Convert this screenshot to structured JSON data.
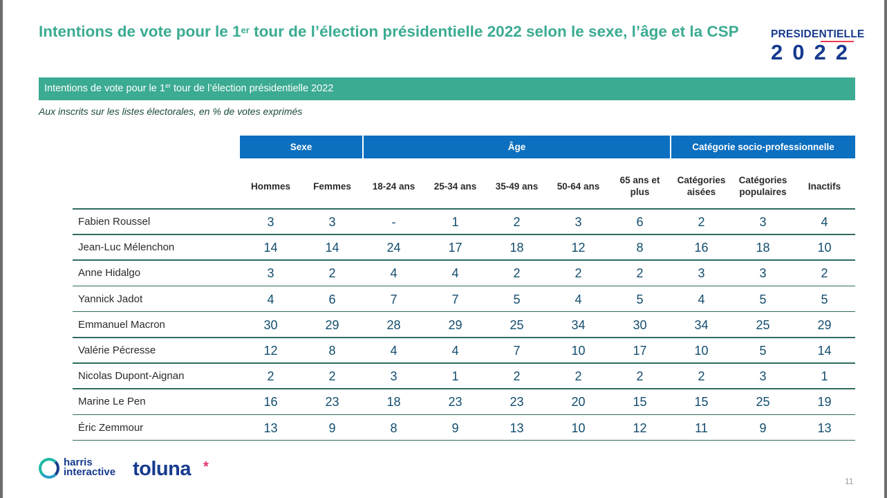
{
  "title": {
    "pre": "Intentions de vote pour le 1",
    "sup": "er",
    "post": " tour de l’élection présidentielle 2022 selon le sexe, l’âge et la CSP"
  },
  "logo": {
    "word": "PRESIDENTIELLE",
    "digits": "2022"
  },
  "banner": {
    "pre": "Intentions de vote pour le 1",
    "sup": "er",
    "post": " tour de l’élection présidentielle 2022"
  },
  "subtitle": "Aux inscrits sur les listes électorales, en % de votes exprimés",
  "groups": [
    {
      "label": "Sexe"
    },
    {
      "label": "Âge"
    },
    {
      "label": "Catégorie socio-professionnelle"
    }
  ],
  "columns": [
    "Hommes",
    "Femmes",
    "18-24 ans",
    "25-34 ans",
    "35-49 ans",
    "50-64 ans",
    "65 ans et plus",
    "Catégories aisées",
    "Catégories populaires",
    "Inactifs"
  ],
  "rows": [
    {
      "name": "Fabien Roussel",
      "values": [
        "3",
        "3",
        "-",
        "1",
        "2",
        "3",
        "6",
        "2",
        "3",
        "4"
      ]
    },
    {
      "name": "Jean-Luc Mélenchon",
      "values": [
        "14",
        "14",
        "24",
        "17",
        "18",
        "12",
        "8",
        "16",
        "18",
        "10"
      ]
    },
    {
      "name": "Anne Hidalgo",
      "values": [
        "3",
        "2",
        "4",
        "4",
        "2",
        "2",
        "2",
        "3",
        "3",
        "2"
      ]
    },
    {
      "name": "Yannick Jadot",
      "values": [
        "4",
        "6",
        "7",
        "7",
        "5",
        "4",
        "5",
        "4",
        "5",
        "5"
      ]
    },
    {
      "name": "Emmanuel Macron",
      "values": [
        "30",
        "29",
        "28",
        "29",
        "25",
        "34",
        "30",
        "34",
        "25",
        "29"
      ]
    },
    {
      "name": "Valérie Pécresse",
      "values": [
        "12",
        "8",
        "4",
        "4",
        "7",
        "10",
        "17",
        "10",
        "5",
        "14"
      ]
    },
    {
      "name": "Nicolas Dupont-Aignan",
      "values": [
        "2",
        "2",
        "3",
        "1",
        "2",
        "2",
        "2",
        "2",
        "3",
        "1"
      ]
    },
    {
      "name": "Marine Le Pen",
      "values": [
        "16",
        "23",
        "18",
        "23",
        "23",
        "20",
        "15",
        "15",
        "25",
        "19"
      ]
    },
    {
      "name": "Éric Zemmour",
      "values": [
        "13",
        "9",
        "8",
        "9",
        "13",
        "10",
        "12",
        "11",
        "9",
        "13"
      ]
    }
  ],
  "footer": {
    "harris": [
      "harris",
      "interactive"
    ],
    "toluna": "toluna",
    "toluna_star": "*",
    "page": "11"
  },
  "colors": {
    "accent_green": "#3bab92",
    "header_blue": "#0c6fbf",
    "brand_navy": "#163a8e"
  }
}
